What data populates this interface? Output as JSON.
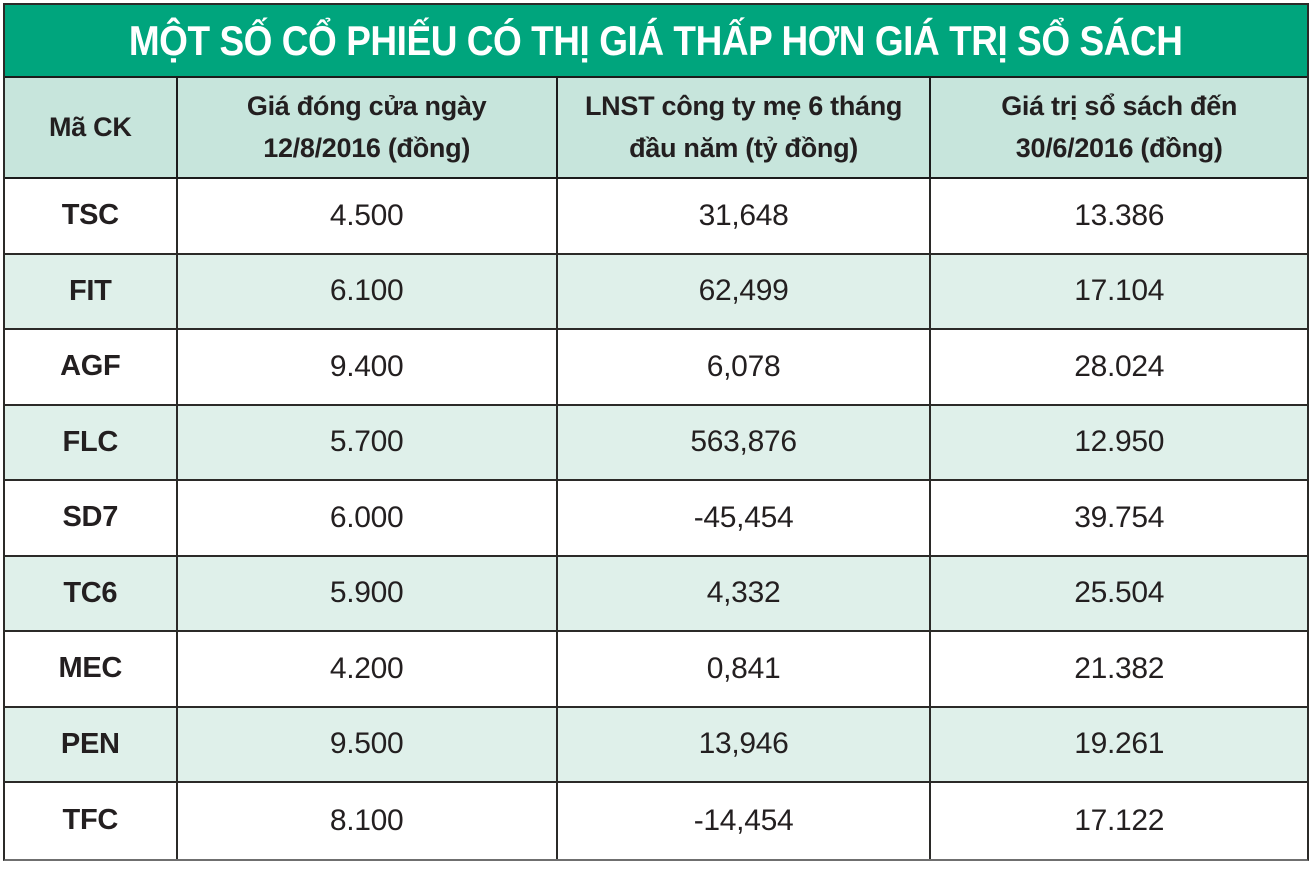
{
  "title": "MỘT SỐ CỔ PHIẾU CÓ THỊ GIÁ THẤP HƠN GIÁ TRỊ SỔ SÁCH",
  "table": {
    "columns": [
      {
        "line1": "Mã CK",
        "line2": ""
      },
      {
        "line1": "Giá đóng cửa ngày",
        "line2": "12/8/2016 (đồng)"
      },
      {
        "line1": "LNST công ty mẹ 6 tháng",
        "line2": "đầu năm (tỷ đồng)"
      },
      {
        "line1": "Giá trị sổ sách đến",
        "line2": "30/6/2016 (đồng)"
      }
    ],
    "rows": [
      {
        "code": "TSC",
        "close_price": "4.500",
        "profit_6m": "31,648",
        "book_value": "13.386"
      },
      {
        "code": "FIT",
        "close_price": "6.100",
        "profit_6m": "62,499",
        "book_value": "17.104"
      },
      {
        "code": "AGF",
        "close_price": "9.400",
        "profit_6m": "6,078",
        "book_value": "28.024"
      },
      {
        "code": "FLC",
        "close_price": "5.700",
        "profit_6m": "563,876",
        "book_value": "12.950"
      },
      {
        "code": "SD7",
        "close_price": "6.000",
        "profit_6m": "-45,454",
        "book_value": "39.754"
      },
      {
        "code": "TC6",
        "close_price": "5.900",
        "profit_6m": "4,332",
        "book_value": "25.504"
      },
      {
        "code": "MEC",
        "close_price": "4.200",
        "profit_6m": "0,841",
        "book_value": "21.382"
      },
      {
        "code": "PEN",
        "close_price": "9.500",
        "profit_6m": "13,946",
        "book_value": "19.261"
      },
      {
        "code": "TFC",
        "close_price": "8.100",
        "profit_6m": "-14,454",
        "book_value": "17.122"
      }
    ]
  },
  "colors": {
    "title_bg": "#00a57d",
    "title_text": "#ffffff",
    "header_bg": "#c7e5dc",
    "row_bg": "#ffffff",
    "row_alt_bg": "#dff0ea",
    "border": "#2b2a28",
    "text": "#231f20"
  },
  "chart_data": {
    "type": "table",
    "title": "MỘT SỐ CỔ PHIẾU CÓ THỊ GIÁ THẤP HƠN GIÁ TRỊ SỔ SÁCH",
    "columns": [
      "Mã CK",
      "Giá đóng cửa ngày 12/8/2016 (đồng)",
      "LNST công ty mẹ 6 tháng đầu năm (tỷ đồng)",
      "Giá trị sổ sách đến 30/6/2016 (đồng)"
    ],
    "rows": [
      [
        "TSC",
        "4.500",
        "31,648",
        "13.386"
      ],
      [
        "FIT",
        "6.100",
        "62,499",
        "17.104"
      ],
      [
        "AGF",
        "9.400",
        "6,078",
        "28.024"
      ],
      [
        "FLC",
        "5.700",
        "563,876",
        "12.950"
      ],
      [
        "SD7",
        "6.000",
        "-45,454",
        "39.754"
      ],
      [
        "TC6",
        "5.900",
        "4,332",
        "25.504"
      ],
      [
        "MEC",
        "4.200",
        "0,841",
        "21.382"
      ],
      [
        "PEN",
        "9.500",
        "13,946",
        "19.261"
      ],
      [
        "TFC",
        "8.100",
        "-14,454",
        "17.122"
      ]
    ],
    "layout": {
      "striped_rows": true,
      "stripe_start": "white",
      "header_style": "light-green band",
      "title_style": "green banner, white bold text"
    }
  }
}
